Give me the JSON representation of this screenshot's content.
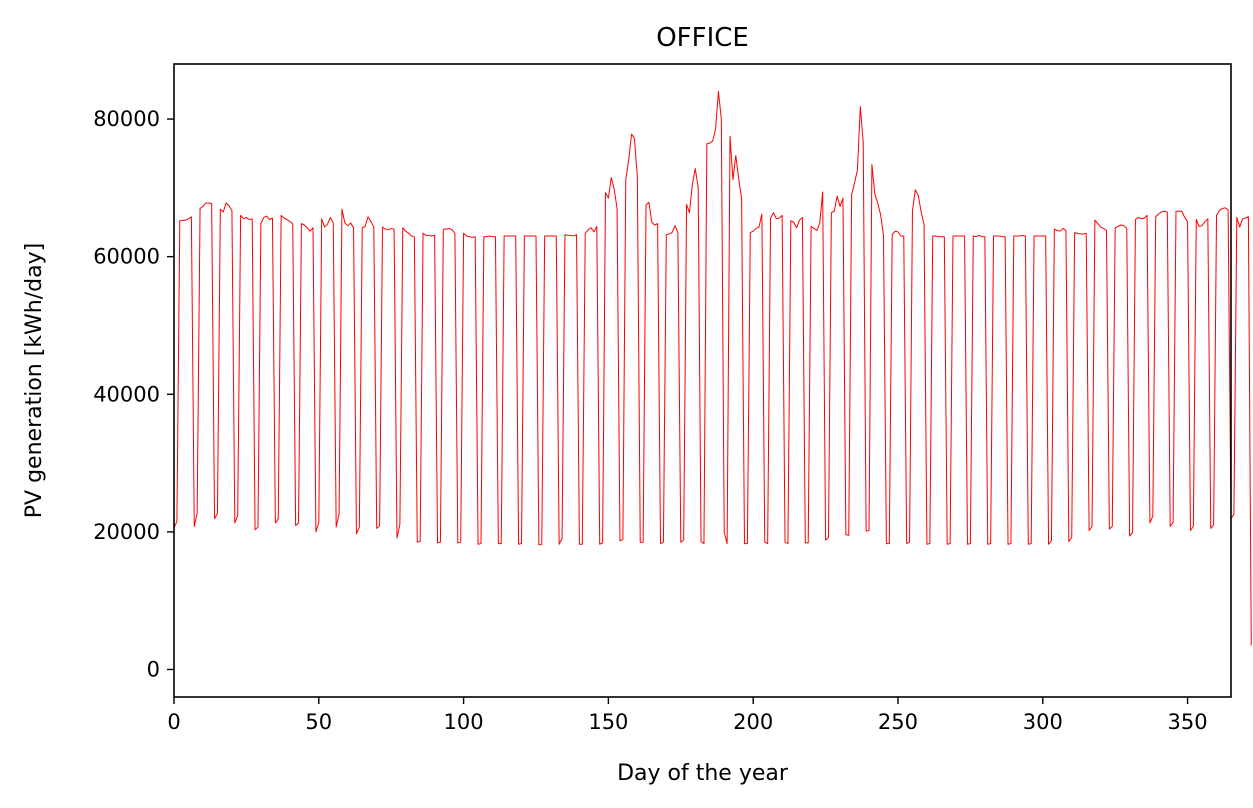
{
  "chart_data": {
    "type": "line",
    "title": "OFFICE",
    "xlabel": "Day of the year",
    "ylabel": "PV generation [kWh/day]",
    "xlim": [
      0,
      365
    ],
    "ylim": [
      -4000,
      88000
    ],
    "xticks": [
      0,
      50,
      100,
      150,
      200,
      250,
      300,
      350
    ],
    "yticks": [
      0,
      20000,
      40000,
      60000,
      80000
    ],
    "grid": false,
    "legend": "none",
    "line_color": "#ff0000",
    "series": [
      {
        "values": [
          20600,
          21500,
          65200,
          65300,
          65300,
          65500,
          65800,
          20800,
          22700,
          67000,
          67300,
          67800,
          67800,
          67700,
          21900,
          22700,
          66900,
          66500,
          67800,
          67400,
          66700,
          21300,
          22400,
          66000,
          65500,
          65700,
          65400,
          65500,
          20300,
          20700,
          64800,
          65700,
          65900,
          65400,
          65600,
          21300,
          21900,
          66000,
          65600,
          65400,
          65100,
          64800,
          20900,
          21300,
          64800,
          64600,
          64200,
          63700,
          64200,
          20000,
          21400,
          65500,
          64300,
          64700,
          65700,
          64900,
          20700,
          22600,
          66900,
          64900,
          64500,
          64900,
          64200,
          19700,
          20700,
          64200,
          64400,
          65800,
          65100,
          64300,
          20500,
          20900,
          64300,
          64000,
          63900,
          64100,
          64000,
          19100,
          21100,
          64200,
          63700,
          63400,
          63000,
          62900,
          18500,
          18600,
          63400,
          63100,
          63100,
          63000,
          63100,
          18400,
          18500,
          64000,
          64000,
          64100,
          63900,
          63400,
          18400,
          18500,
          63400,
          63000,
          62900,
          62800,
          62900,
          18200,
          18300,
          62900,
          62900,
          63000,
          62900,
          62900,
          18300,
          18300,
          63000,
          63000,
          63000,
          63000,
          63000,
          18200,
          18300,
          63000,
          63000,
          63000,
          63000,
          63000,
          18100,
          18200,
          63000,
          63000,
          63000,
          63000,
          63000,
          18200,
          19000,
          63200,
          63100,
          63100,
          63000,
          63200,
          18200,
          18200,
          63400,
          63900,
          64200,
          63600,
          64400,
          18200,
          18400,
          69300,
          68500,
          71500,
          69800,
          67000,
          18700,
          18900,
          71200,
          74000,
          77800,
          77200,
          71600,
          18500,
          18500,
          67500,
          67900,
          65000,
          64600,
          64800,
          18300,
          18500,
          63200,
          63300,
          63500,
          64500,
          63500,
          18500,
          18800,
          67600,
          66400,
          70500,
          72800,
          70100,
          18600,
          18300,
          76400,
          76500,
          76800,
          78500,
          84000,
          80000,
          19900,
          18300,
          77500,
          71200,
          74700,
          71300,
          68500,
          18300,
          18300,
          63500,
          63700,
          64100,
          64300,
          66200,
          18500,
          18300,
          65600,
          66400,
          65500,
          65600,
          66000,
          18500,
          18300,
          65200,
          65000,
          64200,
          65300,
          65700,
          18400,
          18400,
          64400,
          64100,
          63800,
          64900,
          69400,
          18800,
          19200,
          66400,
          66600,
          68800,
          67300,
          68500,
          19600,
          19500,
          69000,
          70700,
          72600,
          81800,
          76600,
          20100,
          20200,
          73400,
          69100,
          67800,
          66100,
          63100,
          18300,
          18300,
          63200,
          63700,
          63600,
          63000,
          63000,
          18300,
          18500,
          66600,
          69700,
          68900,
          66500,
          64700,
          18200,
          18300,
          63000,
          63000,
          62900,
          62900,
          62900,
          18200,
          18300,
          63000,
          63000,
          63000,
          63000,
          63000,
          18200,
          18300,
          63000,
          62900,
          63100,
          62900,
          62900,
          18200,
          18300,
          63000,
          63000,
          63000,
          62900,
          62900,
          18200,
          18300,
          63000,
          63000,
          63000,
          63100,
          63000,
          18200,
          18300,
          63000,
          63000,
          63000,
          63000,
          63000,
          18200,
          18700,
          64000,
          63800,
          63700,
          64100,
          63800,
          18600,
          19200,
          63500,
          63400,
          63300,
          63300,
          63400,
          20200,
          20800,
          65300,
          64800,
          64300,
          64100,
          63800,
          20400,
          20800,
          64200,
          64400,
          64600,
          64500,
          64100,
          19400,
          19900,
          65400,
          65700,
          65500,
          65600,
          66000,
          21300,
          22300,
          65800,
          66200,
          66500,
          66600,
          66500,
          20800,
          21400,
          66600,
          66600,
          66600,
          65700,
          65100,
          20200,
          20800,
          65400,
          64400,
          64500,
          65100,
          65500,
          20500,
          21000,
          66000,
          66700,
          67000,
          67100,
          66800,
          21900,
          22600,
          65700,
          64300,
          65500,
          65600,
          65800,
          3500
        ]
      }
    ]
  }
}
